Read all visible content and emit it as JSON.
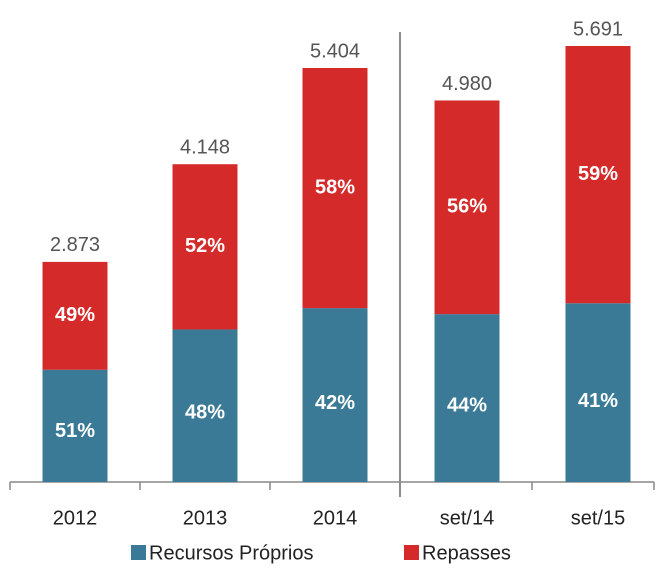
{
  "chart_data": {
    "type": "stacked_bar",
    "categories": [
      "2012",
      "2013",
      "2014",
      "set/14",
      "set/15"
    ],
    "totals": {
      "values": [
        2873,
        4148,
        5404,
        4980,
        5691
      ],
      "value_labels": [
        "2.873",
        "4.148",
        "5.404",
        "4.980",
        "5.691"
      ]
    },
    "series": [
      {
        "name": "Recursos Próprios",
        "color": "#3a7a96",
        "values": [
          51,
          48,
          42,
          44,
          41
        ],
        "value_labels": [
          "51%",
          "48%",
          "42%",
          "44%",
          "41%"
        ]
      },
      {
        "name": "Repasses",
        "color": "#d42a2a",
        "values": [
          49,
          52,
          58,
          56,
          59
        ],
        "value_labels": [
          "49%",
          "52%",
          "58%",
          "56%",
          "59%"
        ]
      }
    ],
    "legend": "bottom"
  }
}
